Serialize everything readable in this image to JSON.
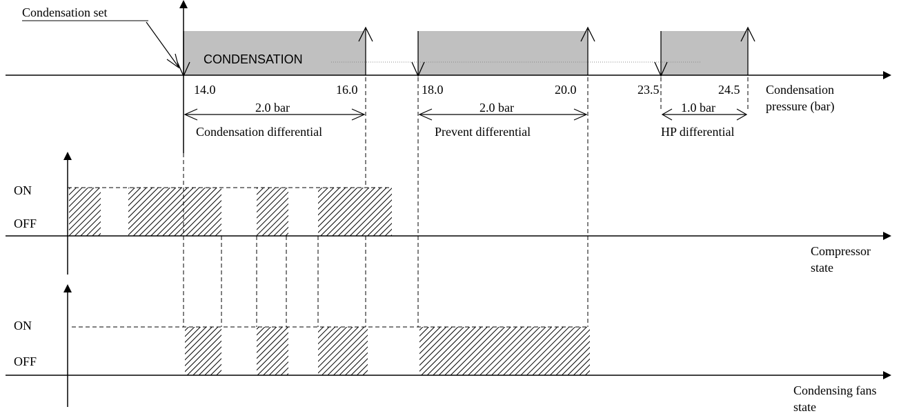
{
  "annotations": {
    "condensation_set": "Condensation set",
    "condensation_band": "CONDENSATION"
  },
  "pressure_axis": {
    "label_line1": "Condensation",
    "label_line2": "pressure (bar)",
    "ticks": [
      "14.0",
      "16.0",
      "18.0",
      "20.0",
      "23.5",
      "24.5"
    ]
  },
  "differentials": [
    {
      "value": "2.0 bar",
      "name": "Condensation differential"
    },
    {
      "value": "2.0 bar",
      "name": "Prevent differential"
    },
    {
      "value": "1.0 bar",
      "name": "HP differential"
    }
  ],
  "compressor": {
    "on_label": "ON",
    "off_label": "OFF",
    "label_line1": "Compressor",
    "label_line2": "state"
  },
  "fans": {
    "on_label": "ON",
    "off_label": "OFF",
    "label_line1": "Condensing fans",
    "label_line2": "state"
  },
  "colors": {
    "band_fill": "#c0c0c0",
    "line": "#000000",
    "hatch": "#000000"
  }
}
